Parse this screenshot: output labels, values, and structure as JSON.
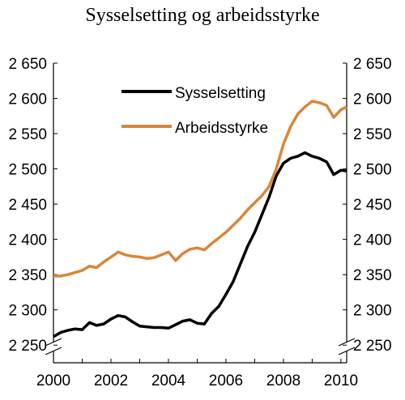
{
  "chart_data": {
    "type": "line",
    "title": "Sysselsetting og arbeidsstyrke",
    "xlabel": "",
    "ylabel": "",
    "xlim": [
      2000,
      2010.2
    ],
    "ylim": [
      2225,
      2650
    ],
    "x_ticks": [
      2000,
      2002,
      2004,
      2006,
      2008,
      2010
    ],
    "x_tick_labels": [
      "2000",
      "2002",
      "2004",
      "2006",
      "2008",
      "2010"
    ],
    "y_ticks": [
      2250,
      2300,
      2350,
      2400,
      2450,
      2500,
      2550,
      2600,
      2650
    ],
    "y_tick_labels": [
      "2 250",
      "2 300",
      "2 350",
      "2 400",
      "2 450",
      "2 500",
      "2 550",
      "2 600",
      "2 650"
    ],
    "axis_break": true,
    "grid": false,
    "legend_position": "top-center",
    "series": [
      {
        "name": "Sysselsetting",
        "color": "#000000",
        "points": [
          [
            2000.0,
            2262
          ],
          [
            2000.25,
            2268
          ],
          [
            2000.5,
            2271
          ],
          [
            2000.75,
            2273
          ],
          [
            2001.0,
            2272
          ],
          [
            2001.25,
            2282
          ],
          [
            2001.5,
            2278
          ],
          [
            2001.75,
            2280
          ],
          [
            2002.0,
            2287
          ],
          [
            2002.25,
            2292
          ],
          [
            2002.5,
            2290
          ],
          [
            2002.75,
            2283
          ],
          [
            2003.0,
            2277
          ],
          [
            2003.25,
            2276
          ],
          [
            2003.5,
            2275
          ],
          [
            2003.75,
            2275
          ],
          [
            2004.0,
            2274
          ],
          [
            2004.25,
            2279
          ],
          [
            2004.5,
            2284
          ],
          [
            2004.75,
            2286
          ],
          [
            2005.0,
            2281
          ],
          [
            2005.25,
            2280
          ],
          [
            2005.5,
            2295
          ],
          [
            2005.75,
            2305
          ],
          [
            2006.0,
            2322
          ],
          [
            2006.25,
            2340
          ],
          [
            2006.5,
            2365
          ],
          [
            2006.75,
            2390
          ],
          [
            2007.0,
            2410
          ],
          [
            2007.25,
            2435
          ],
          [
            2007.5,
            2460
          ],
          [
            2007.75,
            2490
          ],
          [
            2008.0,
            2508
          ],
          [
            2008.25,
            2515
          ],
          [
            2008.5,
            2518
          ],
          [
            2008.75,
            2523
          ],
          [
            2009.0,
            2518
          ],
          [
            2009.25,
            2515
          ],
          [
            2009.5,
            2510
          ],
          [
            2009.75,
            2492
          ],
          [
            2010.0,
            2498
          ],
          [
            2010.2,
            2497
          ]
        ]
      },
      {
        "name": "Arbeidsstyrke",
        "color": "#d9863a",
        "points": [
          [
            2000.0,
            2348
          ],
          [
            2000.25,
            2348
          ],
          [
            2000.5,
            2350
          ],
          [
            2000.75,
            2353
          ],
          [
            2001.0,
            2356
          ],
          [
            2001.25,
            2362
          ],
          [
            2001.5,
            2360
          ],
          [
            2001.75,
            2368
          ],
          [
            2002.0,
            2375
          ],
          [
            2002.25,
            2382
          ],
          [
            2002.5,
            2378
          ],
          [
            2002.75,
            2376
          ],
          [
            2003.0,
            2375
          ],
          [
            2003.25,
            2373
          ],
          [
            2003.5,
            2374
          ],
          [
            2003.75,
            2378
          ],
          [
            2004.0,
            2382
          ],
          [
            2004.25,
            2370
          ],
          [
            2004.5,
            2380
          ],
          [
            2004.75,
            2386
          ],
          [
            2005.0,
            2388
          ],
          [
            2005.25,
            2385
          ],
          [
            2005.5,
            2394
          ],
          [
            2005.75,
            2402
          ],
          [
            2006.0,
            2410
          ],
          [
            2006.25,
            2420
          ],
          [
            2006.5,
            2430
          ],
          [
            2006.75,
            2442
          ],
          [
            2007.0,
            2452
          ],
          [
            2007.25,
            2462
          ],
          [
            2007.5,
            2475
          ],
          [
            2007.75,
            2500
          ],
          [
            2008.0,
            2535
          ],
          [
            2008.25,
            2560
          ],
          [
            2008.5,
            2578
          ],
          [
            2008.75,
            2588
          ],
          [
            2009.0,
            2596
          ],
          [
            2009.25,
            2594
          ],
          [
            2009.5,
            2590
          ],
          [
            2009.75,
            2573
          ],
          [
            2010.0,
            2584
          ],
          [
            2010.2,
            2588
          ]
        ]
      }
    ]
  }
}
